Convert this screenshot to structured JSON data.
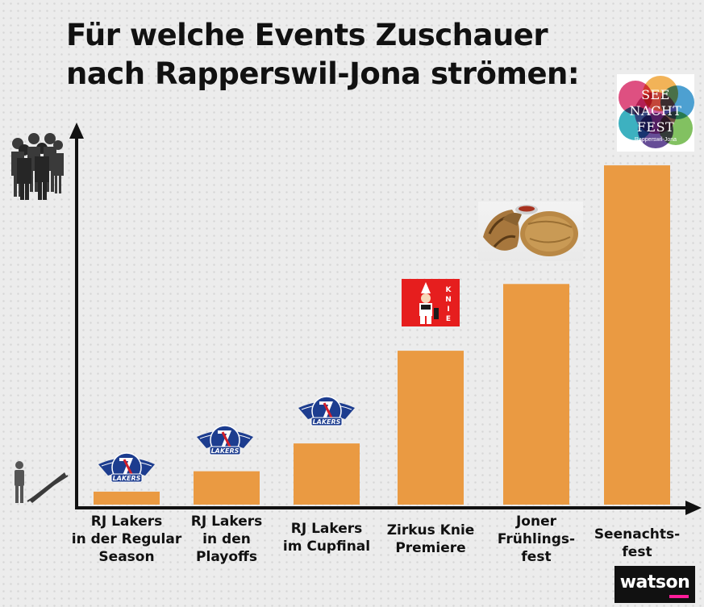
{
  "title": {
    "line1": "Für welche Events Zuschauer",
    "line2": "nach Rapperswil-Jona strömen:"
  },
  "chart_data": {
    "type": "bar",
    "categories": [
      [
        "RJ Lakers",
        "in der Regular",
        "Season"
      ],
      [
        "RJ Lakers",
        "in den",
        "Playoffs"
      ],
      [
        "RJ Lakers",
        "im Cupfinal"
      ],
      [
        "Zirkus Knie",
        "Premiere"
      ],
      [
        "Joner",
        "Frühlings-",
        "fest"
      ],
      [
        "Seenachts-",
        "fest"
      ]
    ],
    "values": [
      3.5,
      9,
      16.5,
      41.5,
      59.5,
      91.5
    ],
    "ylim": [
      0,
      100
    ],
    "xlabel": "",
    "ylabel": "",
    "yaxis_ticks": "none",
    "bar_color": "#ea9a42",
    "axis_color": "#111111",
    "grid": false,
    "legend": "none"
  },
  "logos": {
    "lakers": "SC RAPPERSWIL-JONA LAKERS",
    "lakers_name": "LAKERS",
    "knie": "KNIE",
    "seenachtfest": {
      "line1": "SEE",
      "line2": "NACHT",
      "line3": "FEST",
      "line4": "Rapperswil-Jona"
    },
    "watson": "watson"
  },
  "colors": {
    "background": "#ececec",
    "bar": "#ea9a42",
    "lakers_blue": "#1d3d8f",
    "lakers_red": "#d31f2b",
    "knie_red": "#e61e1e",
    "watson_pink": "#ff1d9a"
  },
  "icons": {
    "crowd": "crowd-icon",
    "single_person": "person-icon",
    "food": "food-photo"
  }
}
